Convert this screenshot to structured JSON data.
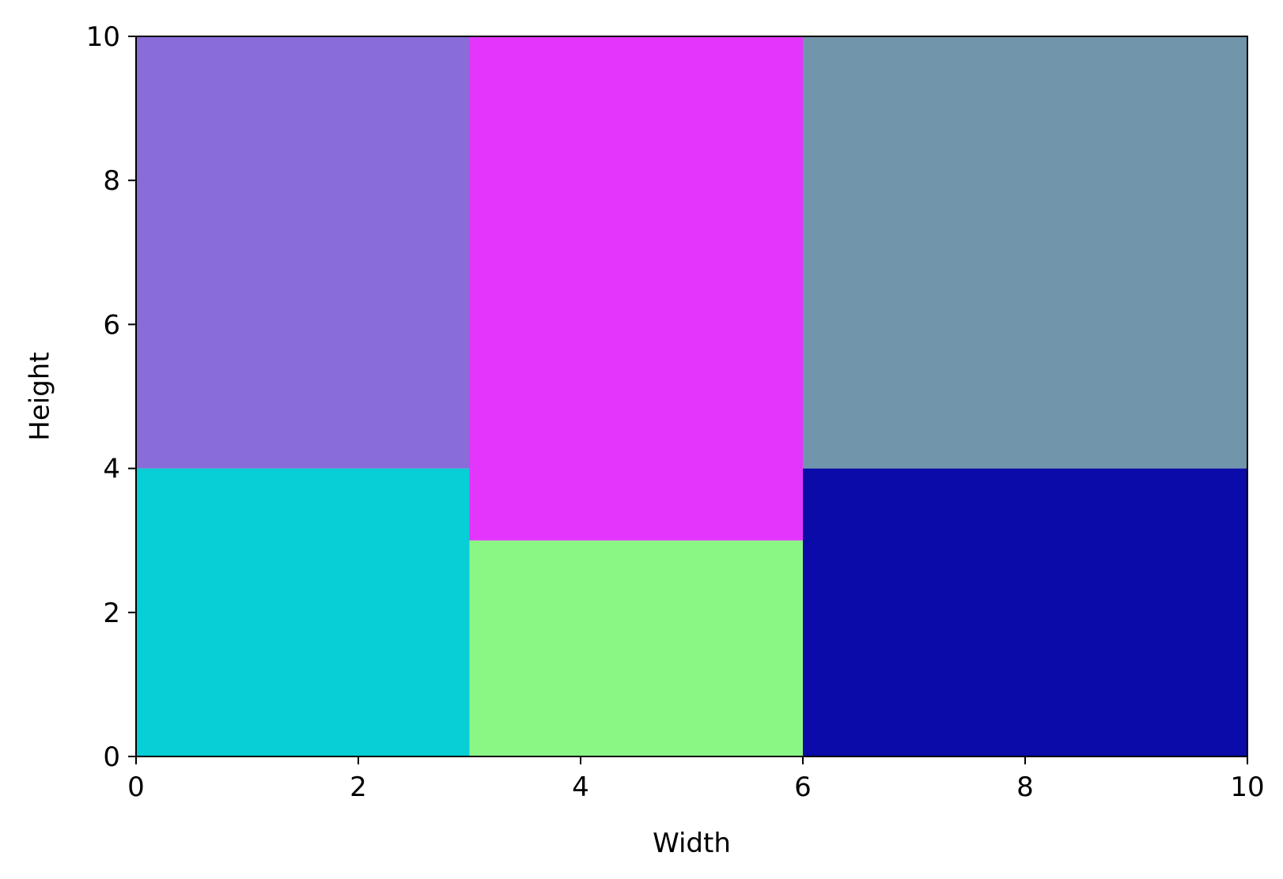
{
  "chart_data": {
    "type": "treemap",
    "title": "",
    "xlabel": "Width",
    "ylabel": "Height",
    "xlim": [
      0,
      10
    ],
    "ylim": [
      0,
      10
    ],
    "xticks": [
      0,
      2,
      4,
      6,
      8,
      10
    ],
    "yticks": [
      0,
      2,
      4,
      6,
      8,
      10
    ],
    "grid": false,
    "legend": "none",
    "rectangles": [
      {
        "x0": 0,
        "x1": 3,
        "y0": 0,
        "y1": 4,
        "color": "#08CED6"
      },
      {
        "x0": 0,
        "x1": 3,
        "y0": 4,
        "y1": 10,
        "color": "#8A6CD9"
      },
      {
        "x0": 3,
        "x1": 6,
        "y0": 0,
        "y1": 3,
        "color": "#8AF784"
      },
      {
        "x0": 3,
        "x1": 6,
        "y0": 3,
        "y1": 10,
        "color": "#E335FC"
      },
      {
        "x0": 6,
        "x1": 10,
        "y0": 0,
        "y1": 4,
        "color": "#0A0BA8"
      },
      {
        "x0": 6,
        "x1": 10,
        "y0": 4,
        "y1": 10,
        "color": "#7195AA"
      }
    ]
  }
}
